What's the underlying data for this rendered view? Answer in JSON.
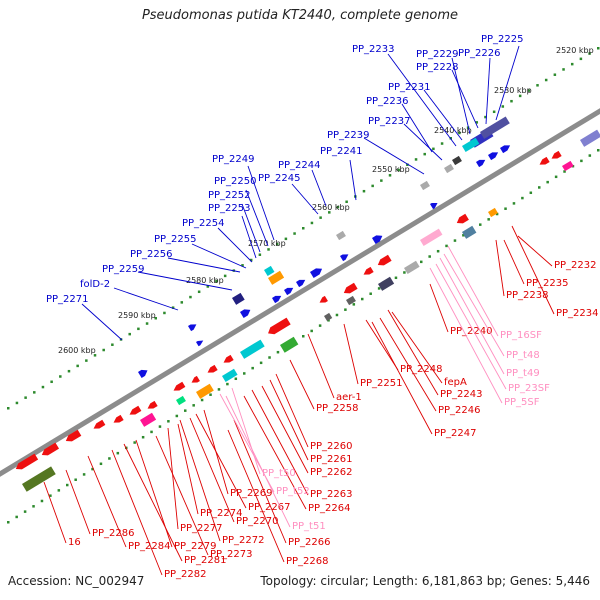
{
  "title": "Pseudomonas putida KT2440, complete genome",
  "footer": {
    "accession": "Accession: NC_002947",
    "topology": "Topology: circular; Length: 6,181,863 bp; Genes: 5,446"
  },
  "colors": {
    "backbone": "#8c8c8c",
    "forward_label": "#0000cc",
    "reverse_label": "#dd0000",
    "rna_label": "#ff8fc0",
    "tick_dots": "#2d8a2d",
    "cds_forward": "#1010e0",
    "cds_reverse": "#ee1010"
  },
  "kbp_ticks": [
    "2520 kbp",
    "2530 kbp",
    "2540 kbp",
    "2550 kbp",
    "2560 kbp",
    "2570 kbp",
    "2580 kbp",
    "2590 kbp",
    "2600 kbp"
  ],
  "forward_labels": [
    "PP_2225",
    "PP_2226",
    "PP_2228",
    "PP_2229",
    "PP_2231",
    "PP_2233",
    "PP_2236",
    "PP_2237",
    "PP_2239",
    "PP_2241",
    "PP_2244",
    "PP_2245",
    "PP_2249",
    "PP_2250",
    "PP_2252",
    "PP_2253",
    "PP_2254",
    "PP_2255",
    "PP_2256",
    "PP_2259",
    "folD-2",
    "PP_2271"
  ],
  "reverse_labels": [
    "PP_2232",
    "PP_2235",
    "PP_2238",
    "PP_2234",
    "PP_2240",
    "fepA",
    "PP_2243",
    "PP_2246",
    "PP_2247",
    "PP_2248",
    "PP_2251",
    "aer-1",
    "PP_2258",
    "PP_2260",
    "PP_2261",
    "PP_2262",
    "PP_2263",
    "PP_2264",
    "PP_2269",
    "PP_2267",
    "PP_2270",
    "PP_2274",
    "PP_2277",
    "PP_2272",
    "PP_2266",
    "PP_2268",
    "PP_2273",
    "PP_2279",
    "PP_2281",
    "PP_2282",
    "PP_2284",
    "PP_2286",
    "16"
  ],
  "rna_labels": [
    "PP_16SF",
    "PP_t48",
    "PP_t49",
    "PP_23SF",
    "PP_5SF",
    "PP_t50",
    "PP_t52",
    "PP_t51"
  ]
}
